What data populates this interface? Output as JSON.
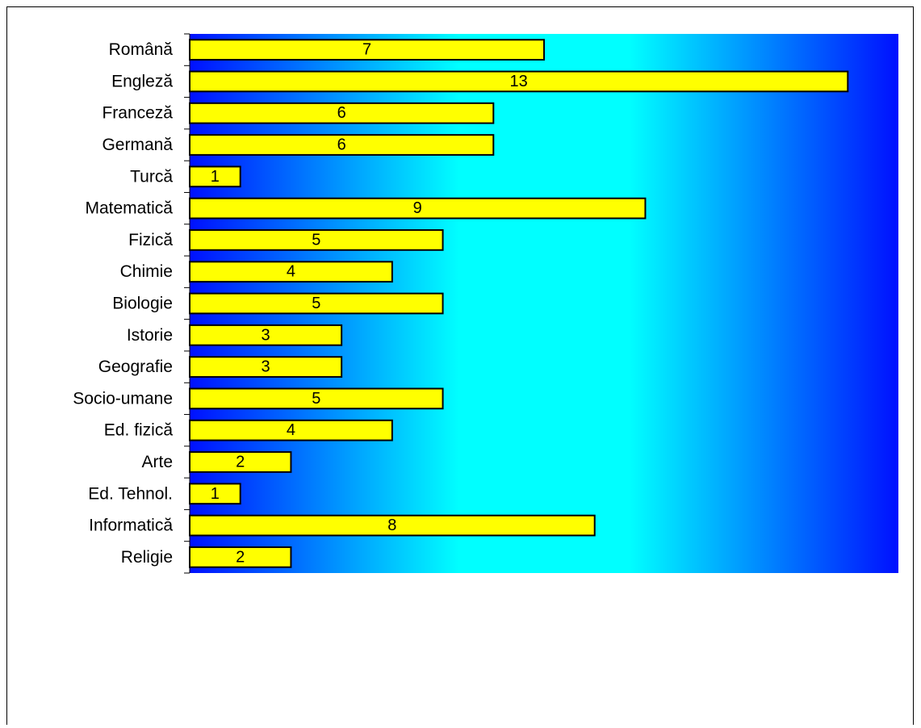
{
  "chart_data": {
    "type": "bar",
    "orientation": "horizontal",
    "categories": [
      "Română",
      "Engleză",
      "Franceză",
      "Germană",
      "Turcă",
      "Matematică",
      "Fizică",
      "Chimie",
      "Biologie",
      "Istorie",
      "Geografie",
      "Socio-umane",
      "Ed. fizică",
      "Arte",
      "Ed. Tehnol.",
      "Informatică",
      "Religie"
    ],
    "values": [
      7,
      13,
      6,
      6,
      1,
      9,
      5,
      4,
      5,
      3,
      3,
      5,
      4,
      2,
      1,
      8,
      2
    ],
    "xlim": [
      0,
      14
    ],
    "data_labels": "inside-center",
    "grid": false,
    "legend": "none",
    "title": "",
    "xlabel": "",
    "ylabel": "",
    "colors": {
      "bar_fill": "#FFFF00",
      "bar_stroke": "#000000",
      "plot_background_edge": "#0010FF",
      "plot_background_center": "#00FFFF"
    }
  }
}
